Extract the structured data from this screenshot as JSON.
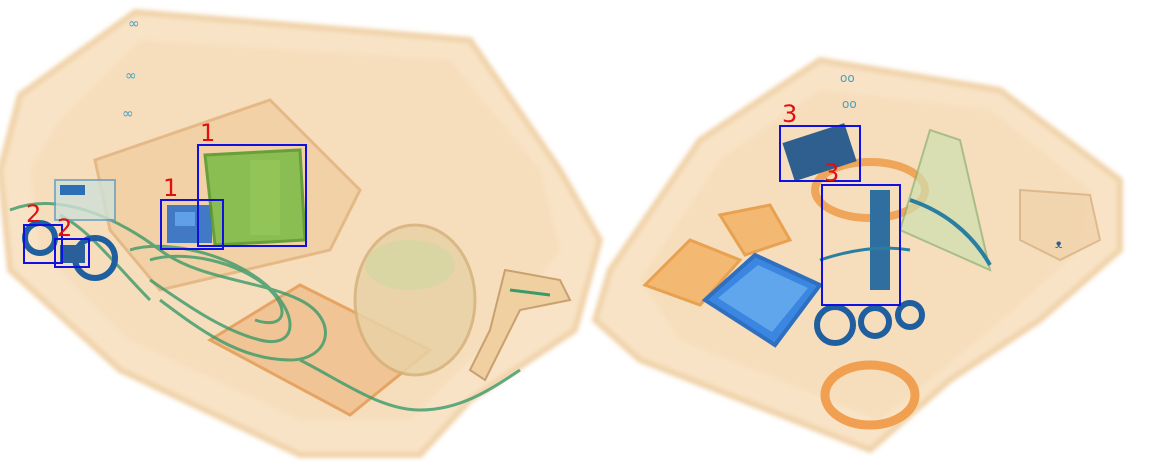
{
  "image": {
    "description_colors": {
      "background": "#ffffff",
      "box_color": "#1010e0",
      "label_color": "#e01010"
    }
  },
  "detections": [
    {
      "id": "det-1a",
      "label": "1"
    },
    {
      "id": "det-1b",
      "label": "1"
    },
    {
      "id": "det-2",
      "label": "2"
    },
    {
      "id": "det-2b",
      "label": "2"
    },
    {
      "id": "det-3a",
      "label": "3"
    },
    {
      "id": "det-3b",
      "label": "3"
    }
  ]
}
